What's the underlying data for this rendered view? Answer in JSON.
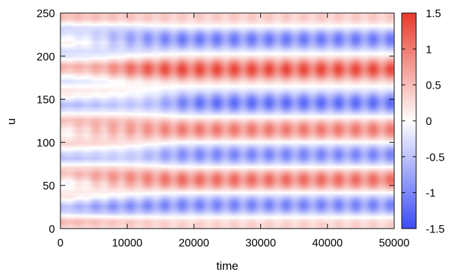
{
  "chart_data": {
    "type": "heatmap",
    "title": "",
    "xlabel": "time",
    "ylabel": "u",
    "xlim": [
      0,
      50000
    ],
    "ylim": [
      0,
      250
    ],
    "x_ticks": [
      "0",
      "10000",
      "20000",
      "30000",
      "40000",
      "50000"
    ],
    "y_ticks": [
      "0",
      "50",
      "100",
      "150",
      "200",
      "250"
    ],
    "colorbar": {
      "range": [
        -1.5,
        1.5
      ],
      "ticks": [
        "-1.5",
        "-1",
        "-0.5",
        "0",
        "0.5",
        "1",
        "1.5"
      ],
      "colors": {
        "low": "#3b4cf5",
        "mid": "#ffffff",
        "high": "#e8392b"
      }
    },
    "bands": [
      {
        "u_center": 7,
        "sign": 1,
        "amplitude": 0.45,
        "start_time": 0
      },
      {
        "u_center": 27,
        "sign": -1,
        "amplitude": 1.1,
        "start_time": 3000
      },
      {
        "u_center": 57,
        "sign": 1,
        "amplitude": 1.15,
        "start_time": 3000
      },
      {
        "u_center": 86,
        "sign": -1,
        "amplitude": 1.05,
        "start_time": 14000
      },
      {
        "u_center": 115,
        "sign": 1,
        "amplitude": 1.05,
        "start_time": 1000
      },
      {
        "u_center": 146,
        "sign": -1,
        "amplitude": 1.25,
        "start_time": 16000
      },
      {
        "u_center": 185,
        "sign": 1,
        "amplitude": 1.4,
        "start_time": 8000
      },
      {
        "u_center": 220,
        "sign": -1,
        "amplitude": 1.15,
        "start_time": 6000
      },
      {
        "u_center": 245,
        "sign": 1,
        "amplitude": 0.45,
        "start_time": 0
      }
    ],
    "oscillation_period": 2600
  }
}
